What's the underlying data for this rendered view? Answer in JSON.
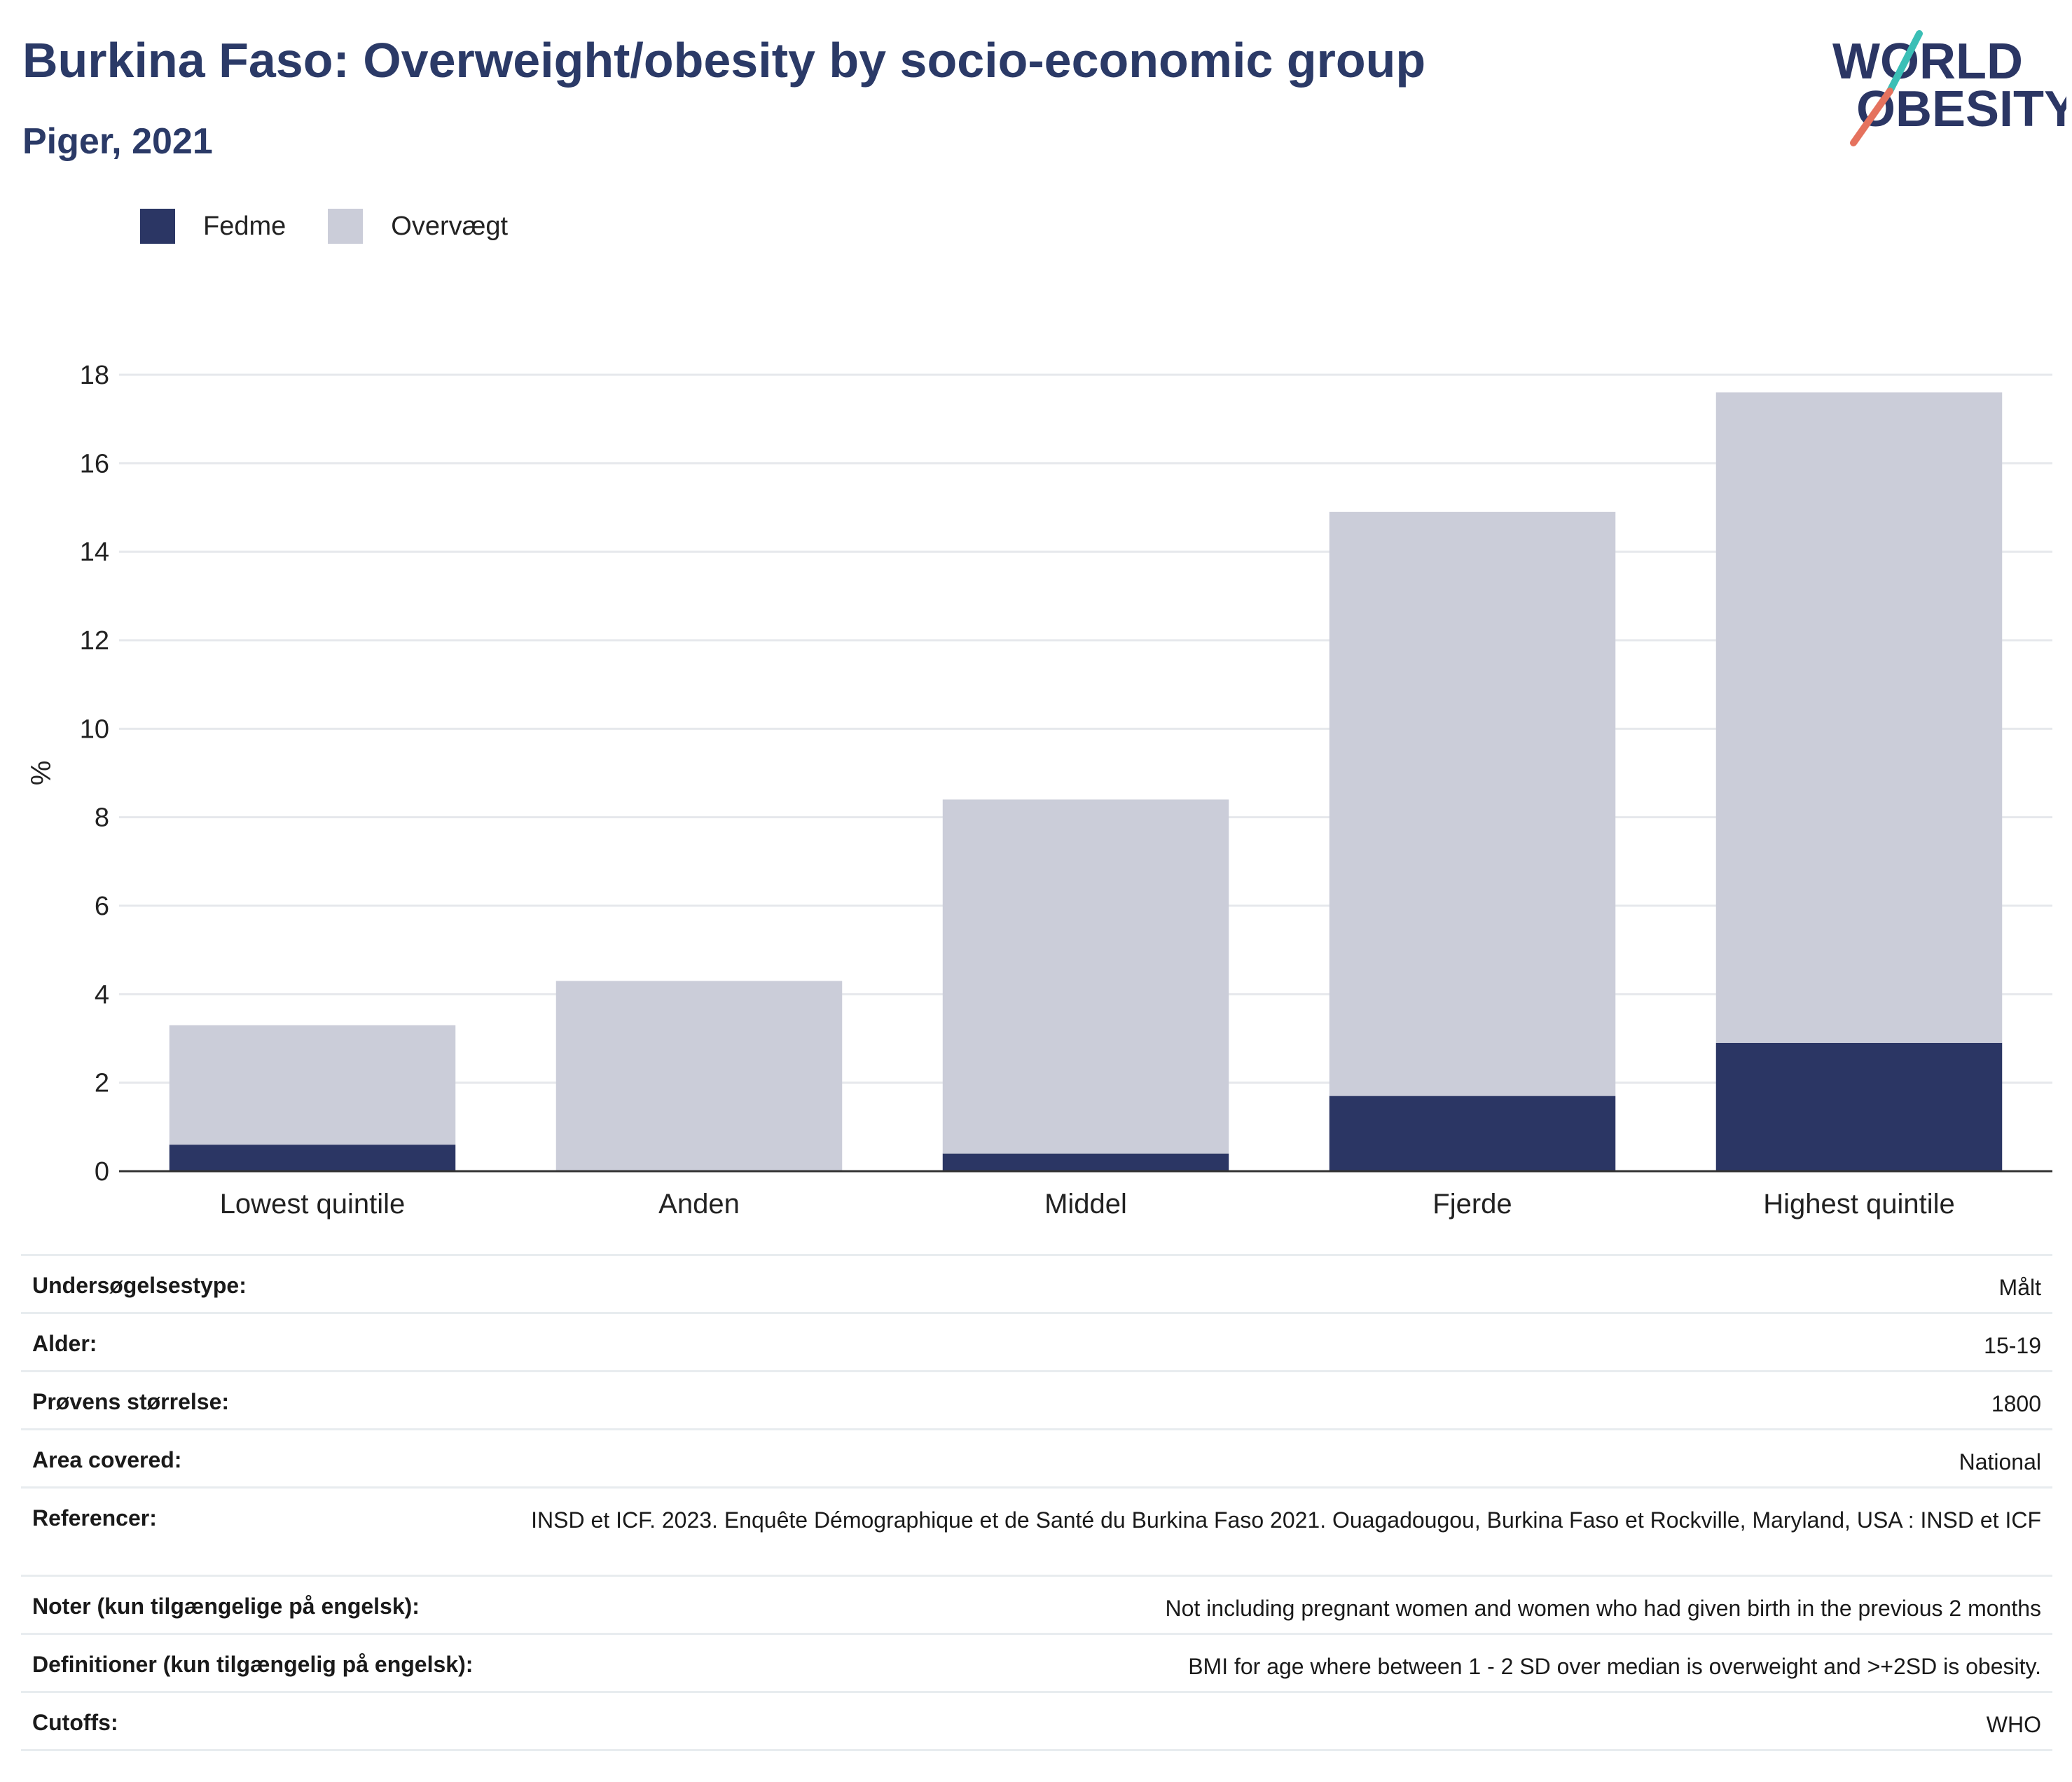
{
  "header": {
    "title": "Burkina Faso: Overweight/obesity by socio-economic group",
    "subtitle": "Piger, 2021"
  },
  "logo": {
    "line1": "WORLD",
    "line2": "OBESITY"
  },
  "colors": {
    "fedme": "#2b3664",
    "overvaegt": "#cbcdd9",
    "title": "#2b3a67",
    "grid": "#e6e8ec",
    "axis": "#333333"
  },
  "chart_data": {
    "type": "bar",
    "stacked": true,
    "categories": [
      "Lowest quintile",
      "Anden",
      "Middel",
      "Fjerde",
      "Highest quintile"
    ],
    "series": [
      {
        "name": "Fedme",
        "values": [
          0.6,
          0.0,
          0.4,
          1.7,
          2.9
        ]
      },
      {
        "name": "Overvægt",
        "values": [
          2.7,
          4.3,
          8.0,
          13.2,
          14.7
        ]
      }
    ],
    "ylabel": "%",
    "ylim": [
      0,
      18
    ],
    "yticks": [
      0,
      2,
      4,
      6,
      8,
      10,
      12,
      14,
      16,
      18
    ],
    "grid": true,
    "legend_position": "top-left"
  },
  "meta": [
    {
      "label": "Undersøgelsestype:",
      "value": "Målt"
    },
    {
      "label": "Alder:",
      "value": "15-19"
    },
    {
      "label": "Prøvens størrelse:",
      "value": "1800"
    },
    {
      "label": "Area covered:",
      "value": "National"
    },
    {
      "label": "Referencer:",
      "value": "INSD et ICF. 2023. Enquête Démographique et de Santé du Burkina Faso 2021. Ouagadougou, Burkina Faso et Rockville, Maryland, USA : INSD et ICF"
    },
    {
      "label": "Noter (kun tilgængelige på engelsk):",
      "value": "Not including pregnant women and women who had given birth in the previous 2 months"
    },
    {
      "label": "Definitioner (kun tilgængelig på engelsk):",
      "value": "BMI for age where between 1 - 2 SD over median is overweight and >+2SD is obesity."
    },
    {
      "label": "Cutoffs:",
      "value": "WHO"
    }
  ]
}
